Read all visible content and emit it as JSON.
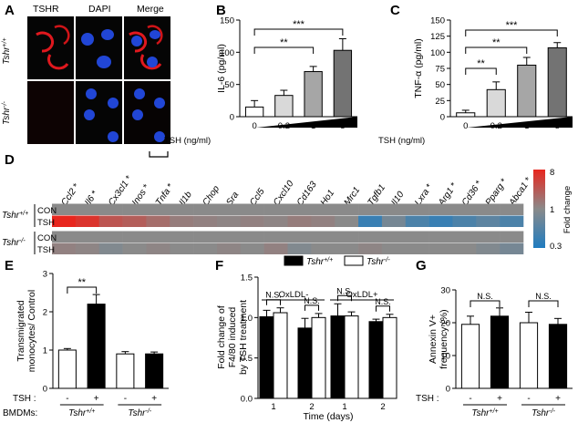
{
  "panels": {
    "A": {
      "label": "A",
      "headers": [
        "TSHR",
        "DAPI",
        "Merge"
      ],
      "rows": [
        "Tshr+/+",
        "Tshr-/-"
      ]
    },
    "B": {
      "label": "B"
    },
    "C": {
      "label": "C"
    },
    "D": {
      "label": "D",
      "genes": [
        {
          "name": "Ccl2",
          "star": true
        },
        {
          "name": "Il6",
          "star": true
        },
        {
          "name": "Cx3cl1",
          "star": true
        },
        {
          "name": "Inos",
          "star": true
        },
        {
          "name": "Tnfa",
          "star": true
        },
        {
          "name": "Il1b",
          "star": false
        },
        {
          "name": "Chop",
          "star": false
        },
        {
          "name": "Sra",
          "star": false
        },
        {
          "name": "Ccl5",
          "star": false
        },
        {
          "name": "Cxcl10",
          "star": false
        },
        {
          "name": "Cd163",
          "star": false
        },
        {
          "name": "Ho1",
          "star": false
        },
        {
          "name": "Mrc1",
          "star": false
        },
        {
          "name": "Tgfb1",
          "star": false
        },
        {
          "name": "Il10",
          "star": false
        },
        {
          "name": "Lxra",
          "star": true
        },
        {
          "name": "Arg1",
          "star": true
        },
        {
          "name": "Cd36",
          "star": true
        },
        {
          "name": "Pparg",
          "star": true
        },
        {
          "name": "Abca1",
          "star": true
        }
      ],
      "groups": [
        {
          "genotype": "Tshr+/+",
          "rows": [
            "CON",
            "TSH"
          ]
        },
        {
          "genotype": "Tshr-/-",
          "rows": [
            "CON",
            "TSH"
          ]
        }
      ],
      "colorbar": {
        "title": "Fold change",
        "ticks": [
          "8",
          "1",
          "0.3"
        ],
        "colors": [
          "#e8261e",
          "#8a8a8a",
          "#1f7cc0"
        ]
      },
      "heat": [
        [
          1,
          1,
          1,
          1,
          1,
          1,
          1,
          1,
          1,
          1,
          1,
          1,
          1,
          1,
          1,
          1,
          1,
          1,
          1,
          1
        ],
        [
          8,
          6,
          3,
          2.5,
          1.8,
          1.3,
          1.2,
          1.1,
          1.2,
          1.1,
          1.3,
          1.2,
          1,
          0.4,
          0.8,
          0.5,
          0.4,
          0.5,
          0.6,
          0.5
        ],
        [
          1,
          1,
          1,
          1,
          1,
          1,
          1,
          1,
          1,
          1,
          1,
          1,
          1,
          1,
          1,
          1,
          1,
          1,
          1,
          1
        ],
        [
          1.2,
          1.1,
          0.9,
          1,
          1.1,
          1,
          1,
          1.1,
          1,
          1.2,
          0.9,
          1,
          1,
          1.1,
          1,
          1,
          1,
          1,
          0.9,
          0.8
        ]
      ]
    },
    "E": {
      "label": "E",
      "xrow1": "TSH :",
      "xrow2": "BMDMs:",
      "geno": [
        "Tshr+/+",
        "Tshr-/-"
      ],
      "signs": [
        "-",
        "+",
        "-",
        "+"
      ]
    },
    "F": {
      "label": "F",
      "groups": [
        "OxLDL-",
        "OxLDL+"
      ]
    },
    "G": {
      "label": "G",
      "xrow1": "TSH :",
      "geno": [
        "Tshr+/+",
        "Tshr-/-"
      ],
      "signs": [
        "-",
        "+",
        "-",
        "+"
      ]
    }
  },
  "chart_data": [
    {
      "panel": "B",
      "type": "bar",
      "categories": [
        "0",
        "0.2",
        "1",
        "5"
      ],
      "values": [
        15,
        33,
        70,
        103
      ],
      "errors": [
        10,
        8,
        8,
        18
      ],
      "xlabel": "TSH (ng/ml)",
      "ylabel": "IL-6 (pg/ml)",
      "ylim": [
        0,
        150
      ],
      "yticks": [
        0,
        50,
        100,
        150
      ],
      "colors": [
        "#ffffff",
        "#d9d9d9",
        "#a6a6a6",
        "#737373"
      ],
      "sig": [
        {
          "from": 0,
          "to": 2,
          "label": "**"
        },
        {
          "from": 0,
          "to": 3,
          "label": "***"
        }
      ]
    },
    {
      "panel": "C",
      "type": "bar",
      "categories": [
        "0",
        "0.2",
        "1",
        "5"
      ],
      "values": [
        6,
        42,
        80,
        107
      ],
      "errors": [
        4,
        12,
        12,
        8
      ],
      "xlabel": "TSH (ng/ml)",
      "ylabel": "TNF-α (pg/ml)",
      "ylim": [
        0,
        150
      ],
      "yticks": [
        0,
        25,
        50,
        75,
        100,
        125,
        150
      ],
      "colors": [
        "#ffffff",
        "#d9d9d9",
        "#a6a6a6",
        "#737373"
      ],
      "sig": [
        {
          "from": 0,
          "to": 1,
          "label": "**"
        },
        {
          "from": 0,
          "to": 2,
          "label": "**"
        },
        {
          "from": 0,
          "to": 3,
          "label": "***"
        }
      ]
    },
    {
      "panel": "E",
      "type": "bar",
      "categories": [
        "-",
        "+",
        "-",
        "+"
      ],
      "values": [
        1.0,
        2.2,
        0.9,
        0.9
      ],
      "errors": [
        0.04,
        0.25,
        0.06,
        0.05
      ],
      "ylabel": "Transmigrated monocytes/ Control",
      "ylim": [
        0,
        3
      ],
      "yticks": [
        0,
        1,
        2,
        3
      ],
      "colors": [
        "#ffffff",
        "#000000",
        "#ffffff",
        "#000000"
      ],
      "sig": [
        {
          "from": 0,
          "to": 1,
          "label": "**"
        }
      ]
    },
    {
      "panel": "F",
      "type": "bar",
      "categories": [
        "1",
        "2",
        "1",
        "2"
      ],
      "xlabel": "Time (days)",
      "ylabel": "Fold change of F4/80 induced by TSH treatment",
      "ylim": [
        0,
        1.5
      ],
      "yticks": [
        0.0,
        0.5,
        1.0,
        1.5
      ],
      "series": [
        {
          "name": "Tshr+/+",
          "color": "#000000",
          "values": [
            1.01,
            0.87,
            1.02,
            0.95
          ],
          "errors": [
            0.08,
            0.12,
            0.15,
            0.03
          ]
        },
        {
          "name": "Tshr-/-",
          "color": "#ffffff",
          "values": [
            1.06,
            1.0,
            1.02,
            1.0
          ],
          "errors": [
            0.06,
            0.05,
            0.05,
            0.04
          ]
        }
      ],
      "sig": [
        {
          "pair": 0,
          "label": "N.S."
        },
        {
          "pair": 1,
          "label": "N.S."
        },
        {
          "pair": 2,
          "label": "N.S."
        },
        {
          "pair": 3,
          "label": "N.S."
        }
      ]
    },
    {
      "panel": "G",
      "type": "bar",
      "categories": [
        "-",
        "+",
        "-",
        "+"
      ],
      "values": [
        19.5,
        22,
        20,
        19.5
      ],
      "errors": [
        2.5,
        2.5,
        3.2,
        1.8
      ],
      "ylabel": "Annexin V+ frequency (%)",
      "ylim": [
        0,
        30
      ],
      "yticks": [
        0,
        10,
        20,
        30
      ],
      "colors": [
        "#ffffff",
        "#000000",
        "#ffffff",
        "#000000"
      ],
      "sig": [
        {
          "from": 0,
          "to": 1,
          "label": "N.S."
        },
        {
          "from": 2,
          "to": 3,
          "label": "N.S."
        }
      ]
    }
  ]
}
